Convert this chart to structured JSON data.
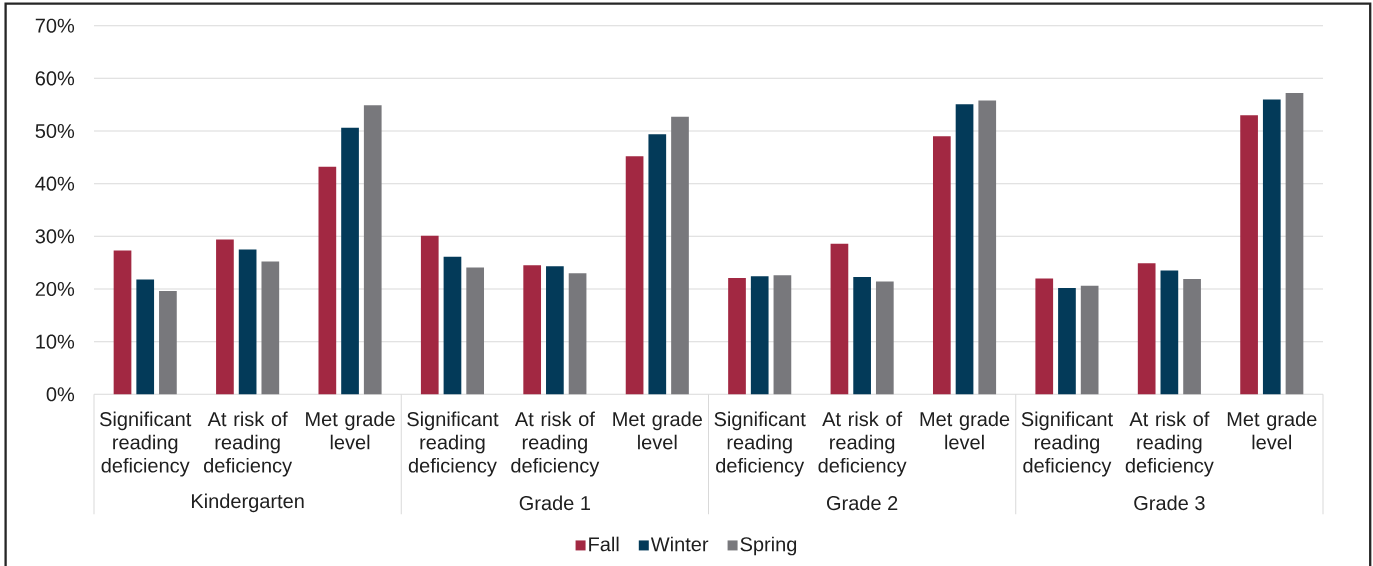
{
  "chart_data": {
    "type": "bar",
    "categories": [
      "Significant reading deficiency",
      "At risk of reading deficiency",
      "Met grade level",
      "Significant reading deficiency",
      "At risk of reading deficiency",
      "Met grade level",
      "Significant reading deficiency",
      "At risk of reading deficiency",
      "Met grade level",
      "Significant reading deficiency",
      "At risk of reading deficiency",
      "Met grade level"
    ],
    "series": [
      {
        "name": "Fall",
        "color": "#a22842",
        "values": [
          27.3,
          29.4,
          43.2,
          30.1,
          24.5,
          45.2,
          22.1,
          28.6,
          49.0,
          22.0,
          24.9,
          53.0
        ]
      },
      {
        "name": "Winter",
        "color": "#033a59",
        "values": [
          21.8,
          27.5,
          50.6,
          26.1,
          24.3,
          49.4,
          22.4,
          22.3,
          55.1,
          20.2,
          23.5,
          56.0
        ]
      },
      {
        "name": "Spring",
        "color": "#78787c",
        "values": [
          19.6,
          25.2,
          54.9,
          24.1,
          23.0,
          52.7,
          22.6,
          21.4,
          55.8,
          20.6,
          21.9,
          57.2
        ]
      }
    ],
    "ylim": [
      0,
      70
    ],
    "yticks": [
      {
        "value": 0,
        "label": "0%"
      },
      {
        "value": 10,
        "label": "10%"
      },
      {
        "value": 20,
        "label": "20%"
      },
      {
        "value": 30,
        "label": "30%"
      },
      {
        "value": 40,
        "label": "40%"
      },
      {
        "value": 50,
        "label": "50%"
      },
      {
        "value": 60,
        "label": "60%"
      },
      {
        "value": 70,
        "label": "70%"
      }
    ],
    "grid": "y",
    "legend": "bottom",
    "annotations": [
      "Kindergarten",
      "Grade 1",
      "Grade 2",
      "Grade 3"
    ]
  }
}
